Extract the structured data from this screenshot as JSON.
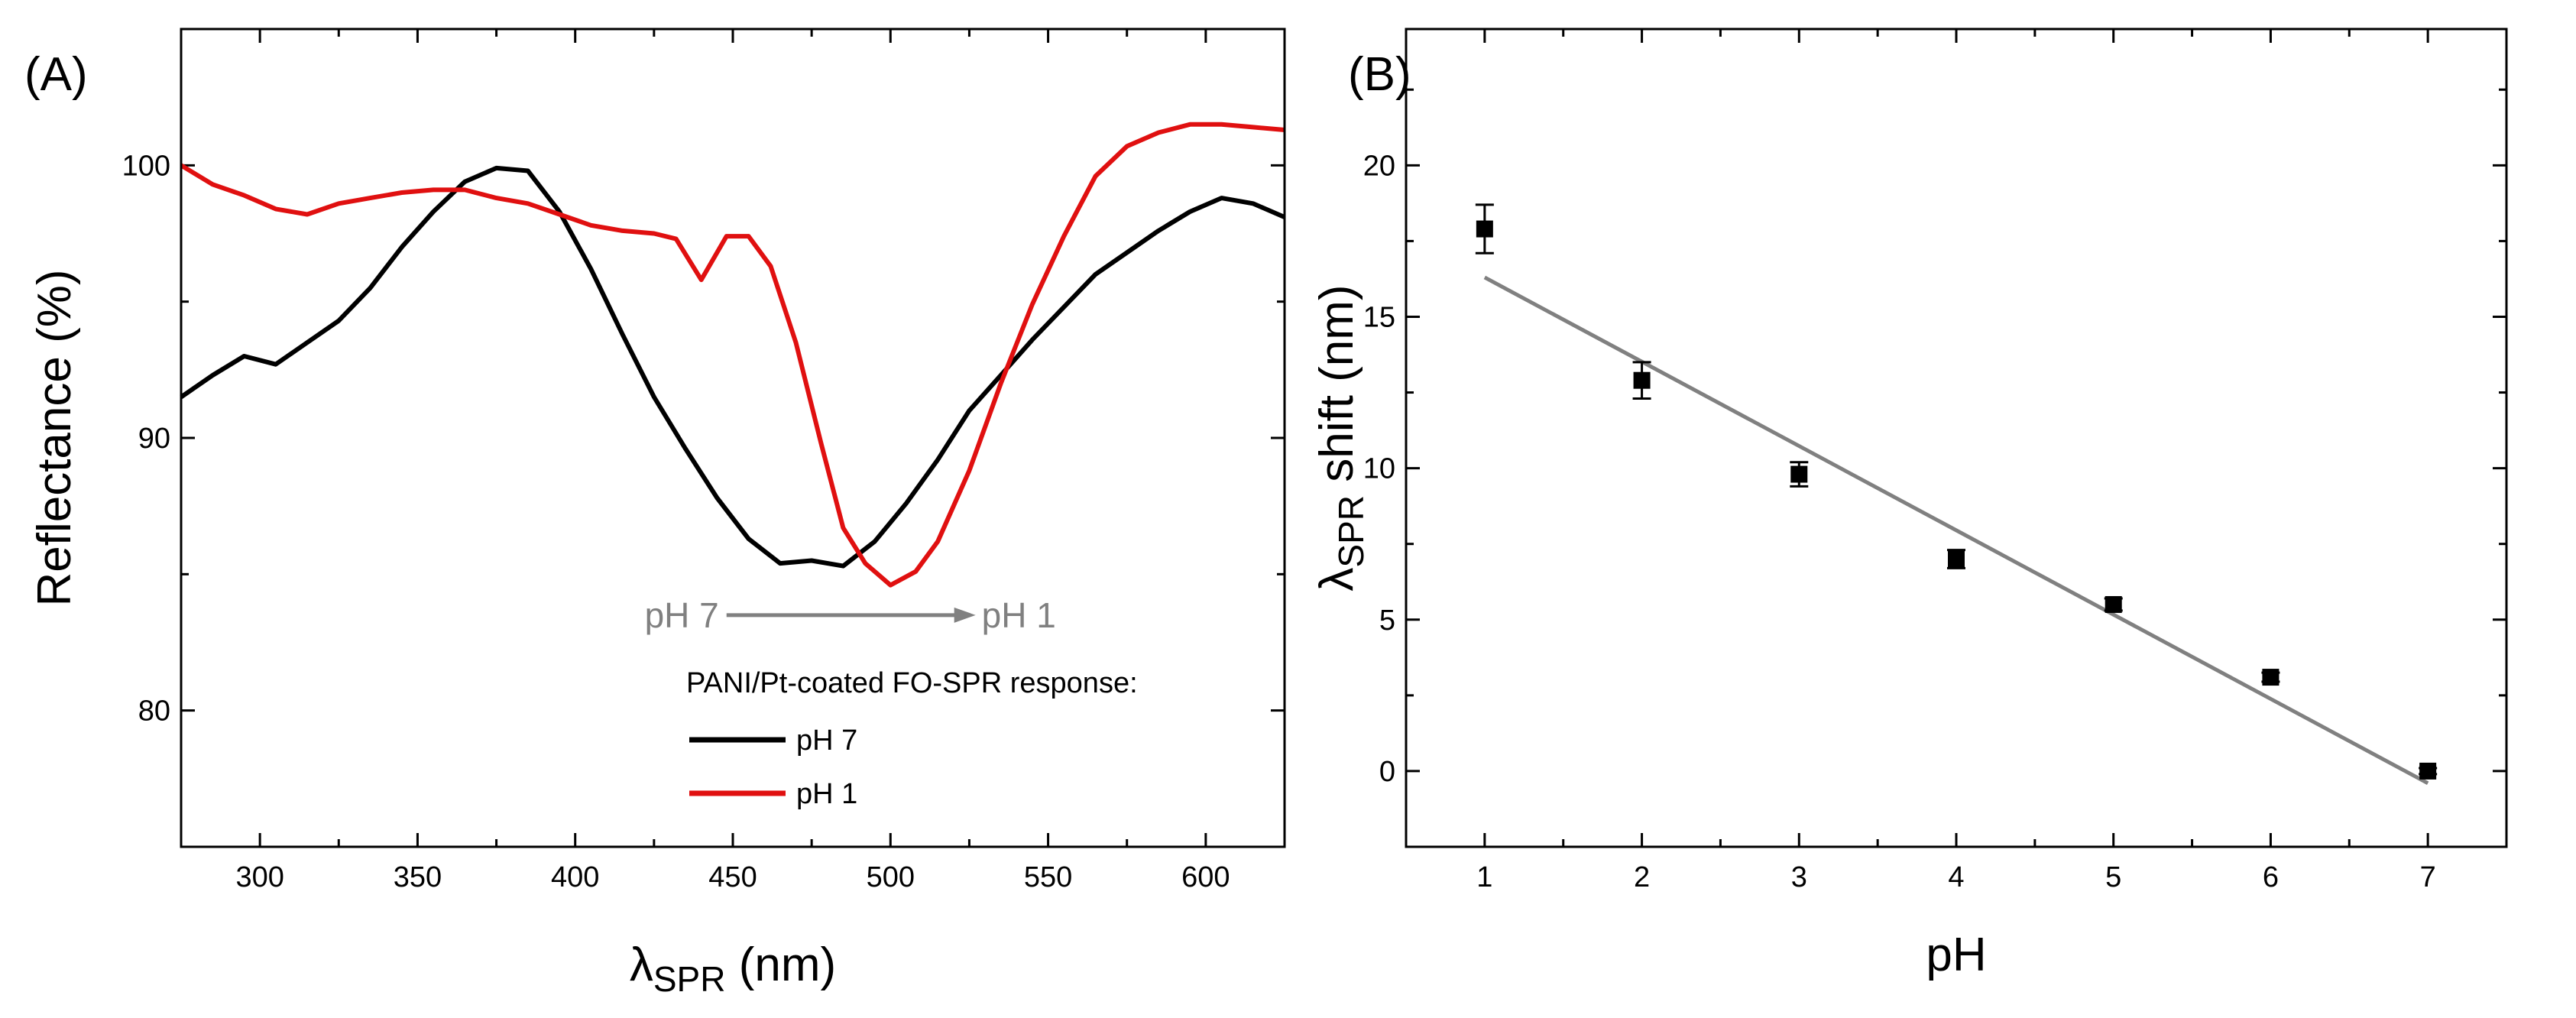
{
  "chart_data": [
    {
      "panel": "(A)",
      "type": "line",
      "xlabel_main": "λ",
      "xlabel_sub": "SPR",
      "xlabel_unit": "(nm)",
      "ylabel": "Reflectance (%)",
      "xlim": [
        275,
        625
      ],
      "ylim": [
        75,
        105
      ],
      "xticks": [
        300,
        350,
        400,
        450,
        500,
        550,
        600
      ],
      "yticks": [
        80,
        90,
        100
      ],
      "legend_title": "PANI/Pt-coated FO-SPR response:",
      "series": [
        {
          "name": "pH 7",
          "color": "#000000",
          "x": [
            275,
            285,
            295,
            305,
            315,
            325,
            335,
            345,
            355,
            365,
            375,
            385,
            395,
            405,
            415,
            425,
            435,
            445,
            455,
            465,
            475,
            485,
            495,
            505,
            515,
            525,
            535,
            545,
            555,
            565,
            575,
            585,
            595,
            605,
            615,
            625
          ],
          "y": [
            91.5,
            92.3,
            93.0,
            92.7,
            93.5,
            94.3,
            95.5,
            97.0,
            98.3,
            99.4,
            99.9,
            99.8,
            98.3,
            96.2,
            93.8,
            91.5,
            89.6,
            87.8,
            86.3,
            85.4,
            85.5,
            85.3,
            86.2,
            87.6,
            89.2,
            91.0,
            92.3,
            93.6,
            94.8,
            96.0,
            96.8,
            97.6,
            98.3,
            98.8,
            98.6,
            98.1
          ]
        },
        {
          "name": "pH 1",
          "color": "#e01010",
          "x": [
            275,
            285,
            295,
            305,
            315,
            325,
            335,
            345,
            355,
            365,
            375,
            385,
            395,
            405,
            415,
            425,
            432,
            440,
            448,
            455,
            462,
            470,
            478,
            485,
            492,
            500,
            508,
            515,
            525,
            535,
            545,
            555,
            565,
            575,
            585,
            595,
            605,
            615,
            625
          ],
          "y": [
            100.0,
            99.3,
            98.9,
            98.4,
            98.2,
            98.6,
            98.8,
            99.0,
            99.1,
            99.1,
            98.8,
            98.6,
            98.2,
            97.8,
            97.6,
            97.5,
            97.3,
            95.8,
            97.4,
            97.4,
            96.3,
            93.5,
            89.8,
            86.7,
            85.4,
            84.6,
            85.1,
            86.2,
            88.8,
            92.0,
            94.9,
            97.4,
            99.6,
            100.7,
            101.2,
            101.5,
            101.5,
            101.4,
            101.3
          ]
        }
      ],
      "annotation": {
        "from_label": "pH 7",
        "to_label": "pH 1",
        "x_start": 448,
        "x_end": 527,
        "y": 83.5
      }
    },
    {
      "panel": "(B)",
      "type": "scatter",
      "xlabel": "pH",
      "ylabel_main": "λ",
      "ylabel_sub": "SPR",
      "ylabel_rest": " shift (nm)",
      "xlim": [
        0.5,
        7.5
      ],
      "ylim": [
        -2.5,
        24.5
      ],
      "xticks": [
        1,
        2,
        3,
        4,
        5,
        6,
        7
      ],
      "yticks": [
        0,
        5,
        10,
        15,
        20
      ],
      "points": {
        "x": [
          1,
          2,
          3,
          4,
          5,
          6,
          7
        ],
        "y": [
          17.9,
          12.9,
          9.8,
          7.0,
          5.5,
          3.1,
          0.0
        ],
        "err": [
          0.8,
          0.6,
          0.4,
          0.3,
          0.2,
          0.15,
          0.1
        ]
      },
      "fit": {
        "x": [
          1,
          7
        ],
        "y": [
          16.3,
          -0.4
        ],
        "color": "#808080"
      }
    }
  ]
}
